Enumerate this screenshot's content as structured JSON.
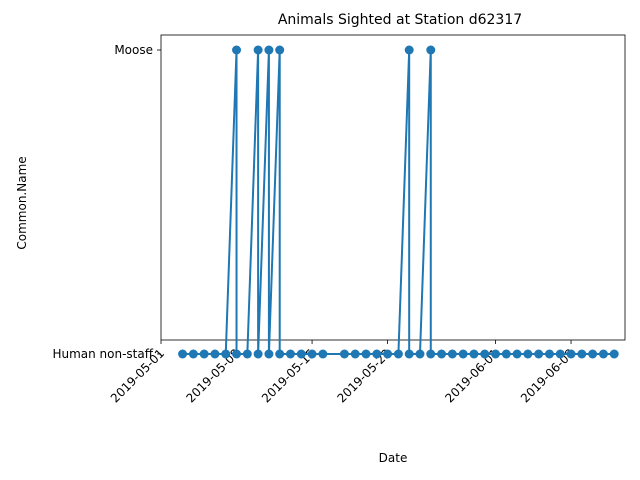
{
  "chart_data": {
    "type": "line",
    "title": "Animals Sighted at Station d62317",
    "xlabel": "Date",
    "ylabel": "Common.Name",
    "categories": [
      "Human non-staff",
      "Moose"
    ],
    "x_ticks": [
      "2019-05-01",
      "2019-05-08",
      "2019-05-15",
      "2019-05-22",
      "2019-06-01",
      "2019-06-08"
    ],
    "xlim": [
      "2019-05-01",
      "2019-06-13"
    ],
    "grid": false,
    "series": [
      {
        "color": "#1f77b4",
        "points": [
          {
            "x": "2019-05-03",
            "y": "Human non-staff"
          },
          {
            "x": "2019-05-04",
            "y": "Human non-staff"
          },
          {
            "x": "2019-05-05",
            "y": "Human non-staff"
          },
          {
            "x": "2019-05-06",
            "y": "Human non-staff"
          },
          {
            "x": "2019-05-07",
            "y": "Human non-staff"
          },
          {
            "x": "2019-05-08",
            "y": "Moose"
          },
          {
            "x": "2019-05-08",
            "y": "Human non-staff"
          },
          {
            "x": "2019-05-09",
            "y": "Human non-staff"
          },
          {
            "x": "2019-05-10",
            "y": "Moose"
          },
          {
            "x": "2019-05-10",
            "y": "Human non-staff"
          },
          {
            "x": "2019-05-11",
            "y": "Moose"
          },
          {
            "x": "2019-05-11",
            "y": "Human non-staff"
          },
          {
            "x": "2019-05-12",
            "y": "Moose"
          },
          {
            "x": "2019-05-12",
            "y": "Human non-staff"
          },
          {
            "x": "2019-05-13",
            "y": "Human non-staff"
          },
          {
            "x": "2019-05-14",
            "y": "Human non-staff"
          },
          {
            "x": "2019-05-15",
            "y": "Human non-staff"
          },
          {
            "x": "2019-05-16",
            "y": "Human non-staff"
          },
          {
            "x": "2019-05-18",
            "y": "Human non-staff"
          },
          {
            "x": "2019-05-19",
            "y": "Human non-staff"
          },
          {
            "x": "2019-05-20",
            "y": "Human non-staff"
          },
          {
            "x": "2019-05-21",
            "y": "Human non-staff"
          },
          {
            "x": "2019-05-22",
            "y": "Human non-staff"
          },
          {
            "x": "2019-05-23",
            "y": "Human non-staff"
          },
          {
            "x": "2019-05-24",
            "y": "Moose"
          },
          {
            "x": "2019-05-24",
            "y": "Human non-staff"
          },
          {
            "x": "2019-05-25",
            "y": "Human non-staff"
          },
          {
            "x": "2019-05-26",
            "y": "Moose"
          },
          {
            "x": "2019-05-26",
            "y": "Human non-staff"
          },
          {
            "x": "2019-05-27",
            "y": "Human non-staff"
          },
          {
            "x": "2019-05-28",
            "y": "Human non-staff"
          },
          {
            "x": "2019-05-29",
            "y": "Human non-staff"
          },
          {
            "x": "2019-05-30",
            "y": "Human non-staff"
          },
          {
            "x": "2019-05-31",
            "y": "Human non-staff"
          },
          {
            "x": "2019-06-01",
            "y": "Human non-staff"
          },
          {
            "x": "2019-06-02",
            "y": "Human non-staff"
          },
          {
            "x": "2019-06-03",
            "y": "Human non-staff"
          },
          {
            "x": "2019-06-04",
            "y": "Human non-staff"
          },
          {
            "x": "2019-06-05",
            "y": "Human non-staff"
          },
          {
            "x": "2019-06-06",
            "y": "Human non-staff"
          },
          {
            "x": "2019-06-07",
            "y": "Human non-staff"
          },
          {
            "x": "2019-06-08",
            "y": "Human non-staff"
          },
          {
            "x": "2019-06-09",
            "y": "Human non-staff"
          },
          {
            "x": "2019-06-10",
            "y": "Human non-staff"
          },
          {
            "x": "2019-06-11",
            "y": "Human non-staff"
          },
          {
            "x": "2019-06-12",
            "y": "Human non-staff"
          }
        ]
      }
    ]
  }
}
